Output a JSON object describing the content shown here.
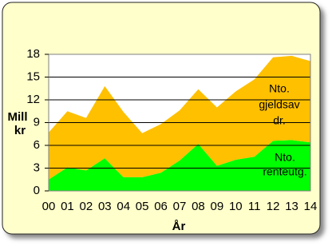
{
  "chart_data": {
    "type": "stacked_area",
    "y_label": [
      "Mill",
      "kr"
    ],
    "x_label": "År",
    "categories": [
      "00",
      "01",
      "02",
      "03",
      "04",
      "05",
      "06",
      "07",
      "08",
      "09",
      "10",
      "11",
      "12",
      "13",
      "14"
    ],
    "series": [
      {
        "name": "Nto. renteutg.",
        "color": "#00ff00",
        "values": [
          1.5,
          3.1,
          2.7,
          4.3,
          1.8,
          1.8,
          2.4,
          4.0,
          6.2,
          3.3,
          4.1,
          4.5,
          6.6,
          6.7,
          6.4
        ]
      },
      {
        "name": "Nto. gjeldsav dr.",
        "color": "#ffc000",
        "values": [
          6.2,
          7.4,
          6.9,
          9.5,
          8.6,
          5.8,
          6.4,
          6.6,
          7.2,
          7.7,
          9.0,
          10.2,
          11.0,
          11.1,
          10.7
        ]
      }
    ],
    "annotations": [
      {
        "lines": [
          "Nto.",
          "renteutg."
        ]
      },
      {
        "lines": [
          "Nto.",
          "gjeldsav",
          "dr."
        ]
      }
    ],
    "ylim": [
      0,
      18
    ],
    "yticks": [
      0,
      3,
      6,
      9,
      12,
      15,
      18
    ],
    "grid": true,
    "background": "#ffffcc"
  }
}
